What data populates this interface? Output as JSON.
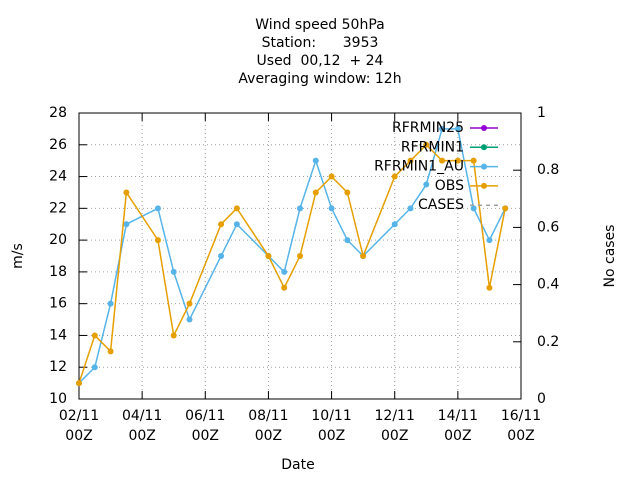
{
  "chart_data": {
    "type": "line",
    "title": "Wind speed 50hPa\nStation:      3953\nUsed  00,12  + 24\nAveraging window: 12h",
    "xlabel": "Date",
    "ylabel": "m/s",
    "y2label": "No cases",
    "x": [
      "02/11 00Z",
      "02/11 12Z",
      "03/11 00Z",
      "03/11 12Z",
      "04/11 12Z",
      "05/11 00Z",
      "05/11 12Z",
      "06/11 12Z",
      "07/11 00Z",
      "08/11 00Z",
      "08/11 12Z",
      "09/11 00Z",
      "09/11 12Z",
      "10/11 00Z",
      "10/11 12Z",
      "11/11 00Z",
      "12/11 00Z",
      "12/11 12Z",
      "13/11 00Z",
      "13/11 12Z",
      "14/11 00Z",
      "14/11 12Z",
      "15/11 00Z",
      "15/11 12Z"
    ],
    "xlim": [
      "02/11 00Z",
      "16/11 00Z"
    ],
    "xticks": [
      "02/11 00Z",
      "04/11 00Z",
      "06/11 00Z",
      "08/11 00Z",
      "10/11 00Z",
      "12/11 00Z",
      "14/11 00Z",
      "16/11 00Z"
    ],
    "ylim": [
      10,
      28
    ],
    "yticks": [
      10,
      12,
      14,
      16,
      18,
      20,
      22,
      24,
      26,
      28
    ],
    "y2lim": [
      0,
      1
    ],
    "y2ticks": [
      0,
      0.2,
      0.4,
      0.6,
      0.8,
      1
    ],
    "grid": true,
    "legend": "top-right",
    "series": [
      {
        "name": "RFRMIN25",
        "color": "#9400d3",
        "values": [
          null,
          null,
          null,
          null,
          null,
          null,
          null,
          null,
          null,
          null,
          null,
          null,
          null,
          null,
          null,
          null,
          null,
          null,
          null,
          null,
          null,
          null,
          null,
          null
        ]
      },
      {
        "name": "RFRMIN1",
        "color": "#009e73",
        "values": [
          null,
          null,
          null,
          null,
          null,
          null,
          null,
          null,
          null,
          null,
          null,
          null,
          null,
          null,
          null,
          null,
          null,
          null,
          null,
          null,
          null,
          null,
          null,
          null
        ]
      },
      {
        "name": "RFRMIN1_AU",
        "color": "#56b4e9",
        "values": [
          11,
          12,
          16,
          21,
          22,
          18,
          15,
          19,
          21,
          19,
          18,
          22,
          25,
          22,
          20,
          19,
          21,
          22,
          23.5,
          27,
          27,
          22,
          20,
          22
        ]
      },
      {
        "name": "OBS",
        "color": "#e69f00",
        "values": [
          11,
          14,
          13,
          23,
          20,
          14,
          16,
          21,
          22,
          19,
          17,
          19,
          23,
          24,
          23,
          19,
          24,
          25,
          26,
          25,
          25,
          25,
          17,
          22
        ]
      },
      {
        "name": "CASES",
        "color": "#a0a0a0",
        "dashed": true,
        "axis": "y2",
        "values": [
          null,
          null,
          null,
          null,
          null,
          null,
          null,
          null,
          null,
          null,
          null,
          null,
          null,
          null,
          null,
          null,
          null,
          null,
          null,
          null,
          null,
          null,
          null,
          null
        ]
      }
    ]
  }
}
